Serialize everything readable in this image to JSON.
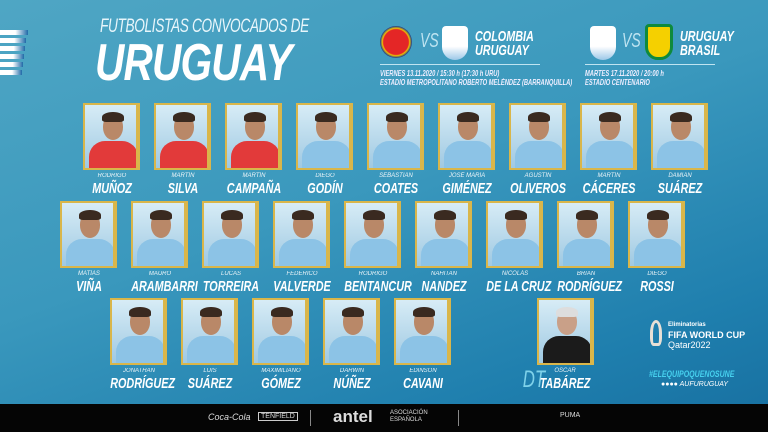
{
  "header": {
    "subtitle": "FUTBOLISTAS CONVOCADOS DE",
    "title": "URUGUAY"
  },
  "matches": [
    {
      "home": "COLOMBIA",
      "away": "URUGUAY",
      "vs": "VS",
      "date": "VIERNES 13.11.2020 / 15:30 h (17:30 h URU)",
      "venue": "ESTADIO METROPOLITANO ROBERTO MELÉNDEZ (BARRANQUILLA)",
      "crest_left": "colombia-crest",
      "crest_right": "uruguay-crest"
    },
    {
      "home": "URUGUAY",
      "away": "BRASIL",
      "vs": "VS",
      "date": "MARTES 17.11.2020 / 20:00 h",
      "venue": "ESTADIO CENTENARIO",
      "crest_left": "uruguay-crest",
      "crest_right": "brasil-crest"
    }
  ],
  "players": [
    {
      "first": "RODRIGO",
      "last": "MUÑOZ",
      "gk": true
    },
    {
      "first": "MARTÍN",
      "last": "SILVA",
      "gk": true
    },
    {
      "first": "MARTÍN",
      "last": "CAMPAÑA",
      "gk": true
    },
    {
      "first": "DIEGO",
      "last": "GODÍN"
    },
    {
      "first": "SEBASTIÁN",
      "last": "COATES"
    },
    {
      "first": "JOSÉ MARÍA",
      "last": "GIMÉNEZ"
    },
    {
      "first": "AGUSTÍN",
      "last": "OLIVEROS"
    },
    {
      "first": "MARTÍN",
      "last": "CÁCERES"
    },
    {
      "first": "DAMIÁN",
      "last": "SUÁREZ"
    },
    {
      "first": "MATÍAS",
      "last": "VIÑA"
    },
    {
      "first": "MAURO",
      "last": "ARAMBARRI"
    },
    {
      "first": "LUCAS",
      "last": "TORREIRA"
    },
    {
      "first": "FEDERICO",
      "last": "VALVERDE"
    },
    {
      "first": "RODRIGO",
      "last": "BENTANCUR"
    },
    {
      "first": "NAHITAN",
      "last": "NANDEZ"
    },
    {
      "first": "NICOLÁS",
      "last": "DE LA CRUZ"
    },
    {
      "first": "BRIAN",
      "last": "RODRÍGUEZ"
    },
    {
      "first": "DIEGO",
      "last": "ROSSI"
    },
    {
      "first": "JONATHAN",
      "last": "RODRÍGUEZ"
    },
    {
      "first": "LUIS",
      "last": "SUÁREZ"
    },
    {
      "first": "MAXIMILIANO",
      "last": "GÓMEZ"
    },
    {
      "first": "DARWIN",
      "last": "NÚÑEZ"
    },
    {
      "first": "EDINSON",
      "last": "CAVANI"
    }
  ],
  "coach": {
    "label": "DT",
    "first": "ÓSCAR",
    "last": "TABÁREZ"
  },
  "branding": {
    "wc_line1": "Eliminatorias",
    "wc_line2": "FIFA WORLD CUP",
    "wc_line3": "Qatar2022",
    "hashtag": "#ELEQUIPOQUENOSUNE",
    "social": "●●●● AUFURUGUAY"
  },
  "sponsors": [
    "Coca-Cola",
    "TENFIELD",
    "antel",
    "ASOCIACIÓN ESPAÑOLA",
    "PUMA"
  ],
  "colors": {
    "background": "#3a98bd",
    "gold": "#d9b64a",
    "goalkeeper_shirt": "#e23a3a",
    "hashtag": "#46d0ee"
  }
}
